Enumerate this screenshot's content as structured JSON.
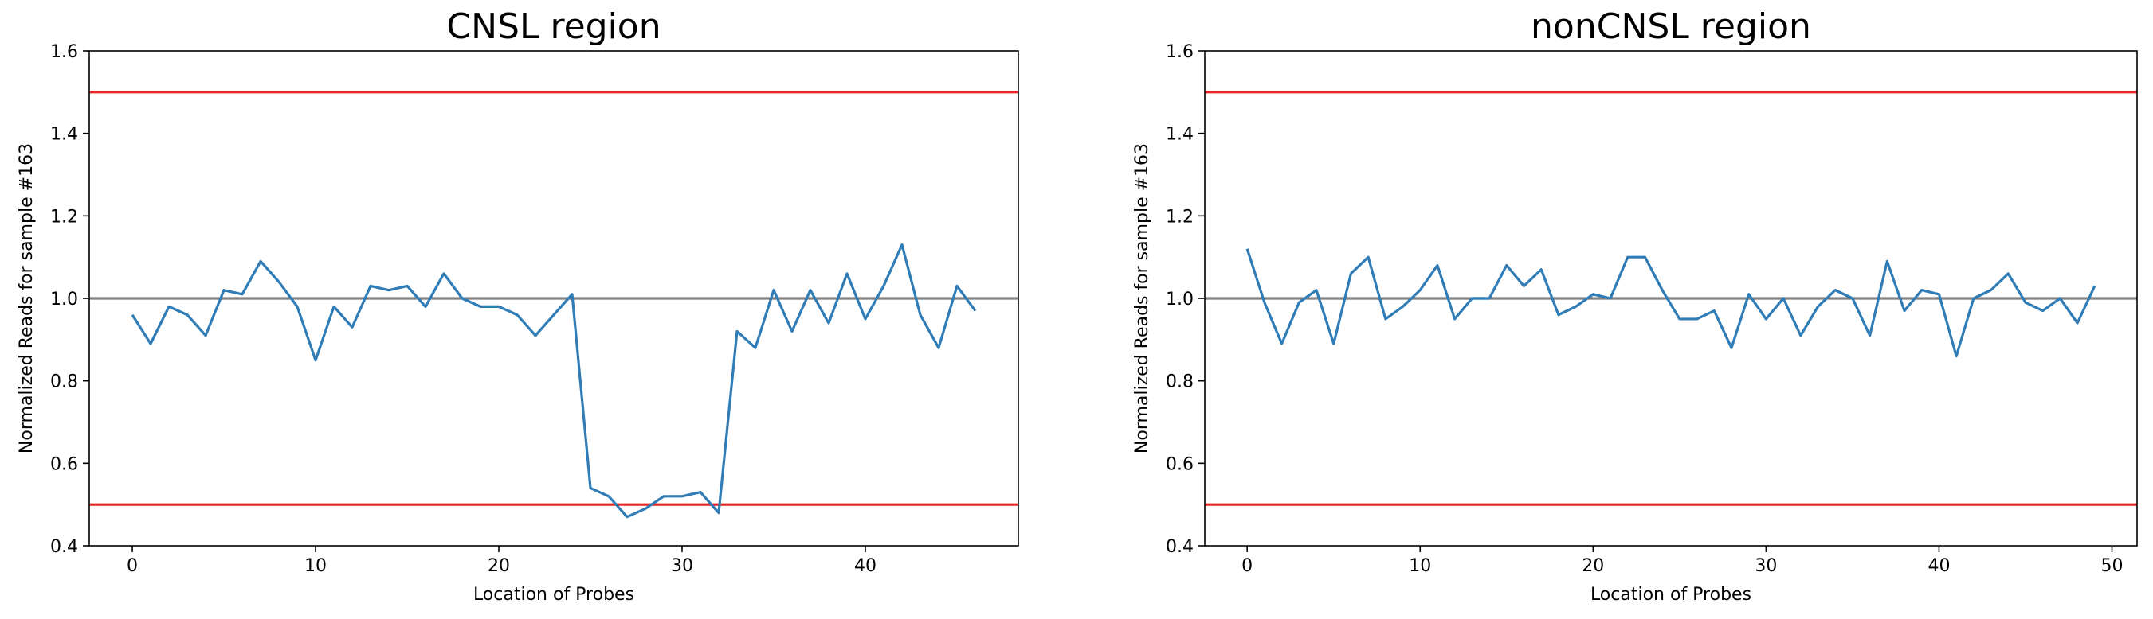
{
  "chart_data": [
    {
      "type": "line",
      "title": "CNSL region",
      "xlabel": "Location of Probes",
      "ylabel": "Normalized Reads for sample #163",
      "xlim": [
        -2.35,
        48.35
      ],
      "ylim": [
        0.4,
        1.6
      ],
      "xticks": [
        0,
        10,
        20,
        30,
        40
      ],
      "yticks": [
        0.4,
        0.6,
        0.8,
        1.0,
        1.2,
        1.4,
        1.6
      ],
      "xtick_labels": [
        "0",
        "10",
        "20",
        "30",
        "40"
      ],
      "ytick_labels": [
        "0.4",
        "0.6",
        "0.8",
        "1.0",
        "1.2",
        "1.4",
        "1.6"
      ],
      "grid": false,
      "hlines": [
        {
          "y": 1.5,
          "color": "#e8272a"
        },
        {
          "y": 1.0,
          "color": "#808080"
        },
        {
          "y": 0.5,
          "color": "#e8272a"
        }
      ],
      "series": [
        {
          "color": "#2f7cb6",
          "x": [
            0,
            1,
            2,
            3,
            4,
            5,
            6,
            7,
            8,
            9,
            10,
            11,
            12,
            13,
            14,
            15,
            16,
            17,
            18,
            19,
            20,
            21,
            22,
            23,
            24,
            25,
            26,
            27,
            28,
            29,
            30,
            31,
            32,
            33,
            34,
            35,
            36,
            37,
            38,
            39,
            40,
            41,
            42,
            43,
            44,
            45,
            46
          ],
          "y": [
            0.96,
            0.89,
            0.98,
            0.96,
            0.91,
            1.02,
            1.01,
            1.09,
            1.04,
            0.98,
            0.85,
            0.98,
            0.93,
            1.03,
            1.02,
            1.03,
            0.98,
            1.06,
            1.0,
            0.98,
            0.98,
            0.96,
            0.91,
            0.96,
            1.01,
            0.54,
            0.52,
            0.47,
            0.49,
            0.52,
            0.52,
            0.53,
            0.48,
            0.92,
            0.88,
            1.02,
            0.92,
            1.02,
            0.94,
            1.06,
            0.95,
            1.03,
            1.13,
            0.96,
            0.88,
            1.03,
            0.97
          ]
        }
      ]
    },
    {
      "type": "line",
      "title": "nonCNSL region",
      "xlabel": "Location of Probes",
      "ylabel": "Normalized Reads for sample #163",
      "xlim": [
        -2.45,
        51.45
      ],
      "ylim": [
        0.4,
        1.6
      ],
      "xticks": [
        0,
        10,
        20,
        30,
        40,
        50
      ],
      "yticks": [
        0.4,
        0.6,
        0.8,
        1.0,
        1.2,
        1.4,
        1.6
      ],
      "xtick_labels": [
        "0",
        "10",
        "20",
        "30",
        "40",
        "50"
      ],
      "ytick_labels": [
        "0.4",
        "0.6",
        "0.8",
        "1.0",
        "1.2",
        "1.4",
        "1.6"
      ],
      "grid": false,
      "hlines": [
        {
          "y": 1.5,
          "color": "#e8272a"
        },
        {
          "y": 1.0,
          "color": "#808080"
        },
        {
          "y": 0.5,
          "color": "#e8272a"
        }
      ],
      "series": [
        {
          "color": "#2f7cb6",
          "x": [
            0,
            1,
            2,
            3,
            4,
            5,
            6,
            7,
            8,
            9,
            10,
            11,
            12,
            13,
            14,
            15,
            16,
            17,
            18,
            19,
            20,
            21,
            22,
            23,
            24,
            25,
            26,
            27,
            28,
            29,
            30,
            31,
            32,
            33,
            34,
            35,
            36,
            37,
            38,
            39,
            40,
            41,
            42,
            43,
            44,
            45,
            46,
            47,
            48,
            49
          ],
          "y": [
            1.12,
            0.99,
            0.89,
            0.99,
            1.02,
            0.89,
            1.06,
            1.1,
            0.95,
            0.98,
            1.02,
            1.08,
            0.95,
            1.0,
            1.0,
            1.08,
            1.03,
            1.07,
            0.96,
            0.98,
            1.01,
            1.0,
            1.1,
            1.1,
            1.02,
            0.95,
            0.95,
            0.97,
            0.88,
            1.01,
            0.95,
            1.0,
            0.91,
            0.98,
            1.02,
            1.0,
            0.91,
            1.09,
            0.97,
            1.02,
            1.01,
            0.86,
            1.0,
            1.02,
            1.06,
            0.99,
            0.97,
            1.0,
            0.94,
            1.03
          ]
        }
      ]
    }
  ]
}
